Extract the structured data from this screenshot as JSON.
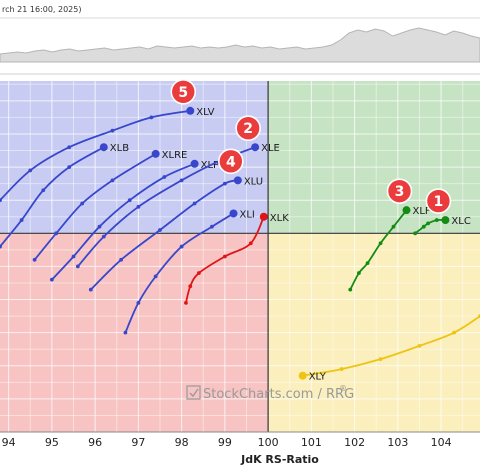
{
  "header": {
    "date_text": "rch 21 16:00, 2025)"
  },
  "watermark": {
    "text": "StockCharts.com / RRG",
    "reg": "®"
  },
  "colors": {
    "leading": "#c6e3c4",
    "weakening": "#faefbd",
    "lagging": "#f7c3c3",
    "improving": "#c8ccf3",
    "blue": "#3847cc",
    "green": "#148c14",
    "red": "#e01515",
    "yellow": "#eec412",
    "badge": "#ea3c3c"
  },
  "chart_data": {
    "type": "scatter",
    "title": "",
    "xlabel": "JdK RS-Ratio",
    "ylabel": "",
    "xlim": [
      93.8,
      104.9
    ],
    "x_ticks": [
      94,
      95,
      96,
      97,
      98,
      99,
      100,
      101,
      102,
      103,
      104
    ],
    "center": [
      100,
      100
    ],
    "grid": true,
    "series": [
      {
        "name": "XLV",
        "color": "blue",
        "label_side": "right",
        "badge": "5",
        "points": [
          [
            93.8,
            101.0
          ],
          [
            94.5,
            101.9
          ],
          [
            95.4,
            102.6
          ],
          [
            96.4,
            103.1
          ],
          [
            97.3,
            103.5
          ],
          [
            98.2,
            103.7
          ]
        ]
      },
      {
        "name": "XLB",
        "color": "blue",
        "label_side": "right",
        "points": [
          [
            93.8,
            99.6
          ],
          [
            94.3,
            100.4
          ],
          [
            94.8,
            101.3
          ],
          [
            95.4,
            102.0
          ],
          [
            96.2,
            102.6
          ]
        ]
      },
      {
        "name": "XLRE",
        "color": "blue",
        "label_side": "right",
        "points": [
          [
            94.6,
            99.2
          ],
          [
            95.1,
            100.0
          ],
          [
            95.7,
            100.9
          ],
          [
            96.4,
            101.6
          ],
          [
            97.4,
            102.4
          ]
        ]
      },
      {
        "name": "XLP",
        "color": "blue",
        "label_side": "right",
        "points": [
          [
            95.0,
            98.6
          ],
          [
            95.5,
            99.3
          ],
          [
            96.1,
            100.2
          ],
          [
            96.8,
            101.0
          ],
          [
            97.6,
            101.7
          ],
          [
            98.3,
            102.1
          ]
        ]
      },
      {
        "name": "XLE",
        "color": "blue",
        "label_side": "right",
        "badge": "2",
        "points": [
          [
            95.6,
            99.0
          ],
          [
            96.2,
            99.9
          ],
          [
            97.0,
            100.8
          ],
          [
            98.0,
            101.6
          ],
          [
            98.9,
            102.2
          ],
          [
            99.7,
            102.6
          ]
        ]
      },
      {
        "name": "XLU",
        "color": "blue",
        "label_side": "right",
        "badge": "4",
        "points": [
          [
            95.9,
            98.3
          ],
          [
            96.6,
            99.2
          ],
          [
            97.5,
            100.1
          ],
          [
            98.3,
            100.9
          ],
          [
            99.0,
            101.5
          ],
          [
            99.3,
            101.6
          ]
        ]
      },
      {
        "name": "XLI",
        "color": "blue",
        "label_side": "right",
        "points": [
          [
            96.7,
            97.0
          ],
          [
            97.0,
            97.9
          ],
          [
            97.4,
            98.7
          ],
          [
            98.0,
            99.6
          ],
          [
            98.7,
            100.2
          ],
          [
            99.2,
            100.6
          ]
        ]
      },
      {
        "name": "XLK",
        "color": "red",
        "label_side": "right",
        "points": [
          [
            98.1,
            97.9
          ],
          [
            98.2,
            98.4
          ],
          [
            98.4,
            98.8
          ],
          [
            99.0,
            99.3
          ],
          [
            99.6,
            99.7
          ],
          [
            99.9,
            100.5
          ]
        ]
      },
      {
        "name": "XLF",
        "color": "green",
        "label_side": "right",
        "badge": "3",
        "points": [
          [
            101.9,
            98.3
          ],
          [
            102.1,
            98.8
          ],
          [
            102.3,
            99.1
          ],
          [
            102.6,
            99.7
          ],
          [
            102.9,
            100.2
          ],
          [
            103.2,
            100.7
          ]
        ]
      },
      {
        "name": "XLC",
        "color": "green",
        "label_side": "right",
        "badge": "1",
        "points": [
          [
            103.4,
            100.0
          ],
          [
            103.6,
            100.2
          ],
          [
            103.7,
            100.3
          ],
          [
            103.9,
            100.4
          ],
          [
            104.1,
            100.4
          ]
        ]
      },
      {
        "name": "XLY",
        "color": "yellow",
        "label_side": "right",
        "points": [
          [
            104.9,
            97.5
          ],
          [
            104.3,
            97.0
          ],
          [
            103.5,
            96.6
          ],
          [
            102.6,
            96.2
          ],
          [
            101.7,
            95.9
          ],
          [
            100.8,
            95.7
          ]
        ]
      }
    ]
  }
}
